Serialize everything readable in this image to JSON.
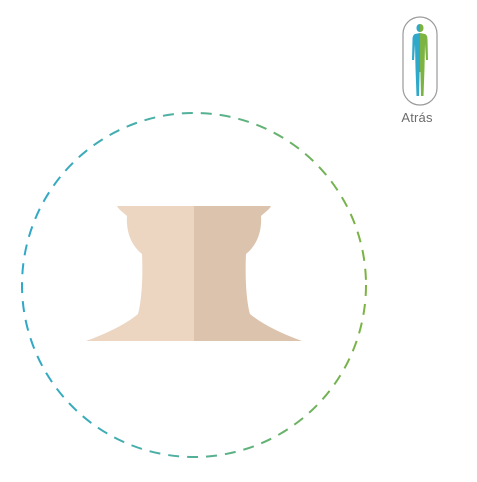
{
  "back": {
    "label": "Atrás",
    "icon": "human-body-icon"
  },
  "colors": {
    "blue": "#2fa8c9",
    "green": "#7cb342",
    "skin_light": "#ecd6c1",
    "skin_dark": "#dcc3ae",
    "outline_gray": "#9a9a9a",
    "label_gray": "#6b6b6b"
  },
  "view": {
    "body_region": "neck"
  }
}
